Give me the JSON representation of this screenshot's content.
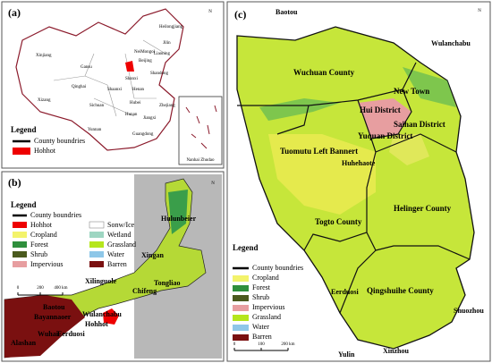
{
  "panel_a": {
    "label": "(a)",
    "north": "N",
    "provinces": [
      "Xinjiang",
      "Xizang",
      "Qinghai",
      "Gansu",
      "NeiMongol",
      "Heilongjiang",
      "Jilin",
      "Liaoning",
      "Beijing",
      "Shanxi",
      "Shaanxi",
      "Sichuan",
      "Yunnan",
      "Hubei",
      "Hunan",
      "Guangdong",
      "Jiangxi",
      "Zhejiang",
      "Henan",
      "Shandong"
    ],
    "inset": "Nanhai Zhudao",
    "legend": {
      "title": "Legend",
      "items": [
        "County boundries",
        "Hohhot"
      ]
    }
  },
  "panel_b": {
    "label": "(b)",
    "north": "N",
    "legend": {
      "title": "Legend",
      "items": [
        "County boundries",
        "Hohhot",
        "Cropland",
        "Forest",
        "Shrub",
        "Impervious",
        "Sonw/Ice",
        "Wetland",
        "Grassland",
        "Water",
        "Barren"
      ]
    },
    "scale": [
      "0",
      "200",
      "400 km"
    ],
    "regions": [
      "Hulunbeier",
      "Xingan",
      "Tongliao",
      "Chifeng",
      "Xilinguole",
      "Wulanchabu",
      "Baotou",
      "Bayannaoer",
      "Alashan",
      "Wuhai",
      "Eerduosi",
      "Hohhot"
    ]
  },
  "panel_c": {
    "label": "(c)",
    "north": "N",
    "surroundings": [
      "Baotou",
      "Wulanchabu",
      "Eerduosi",
      "Shuozhou",
      "Xinzhou",
      "Yulin"
    ],
    "counties": [
      "Wuchuan County",
      "New Town",
      "Hui District",
      "Saihan District",
      "Yuquan District",
      "Tuomutu Left Bannert",
      "Huhehaote",
      "Togto County",
      "Helinger County",
      "Qingshuihe County"
    ],
    "legend": {
      "title": "Legend",
      "items": [
        "County boundries",
        "Cropland",
        "Forest",
        "Shrub",
        "Impervious",
        "Grassland",
        "Water",
        "Barren"
      ]
    },
    "scale": [
      "0",
      "100",
      "200 km"
    ]
  }
}
